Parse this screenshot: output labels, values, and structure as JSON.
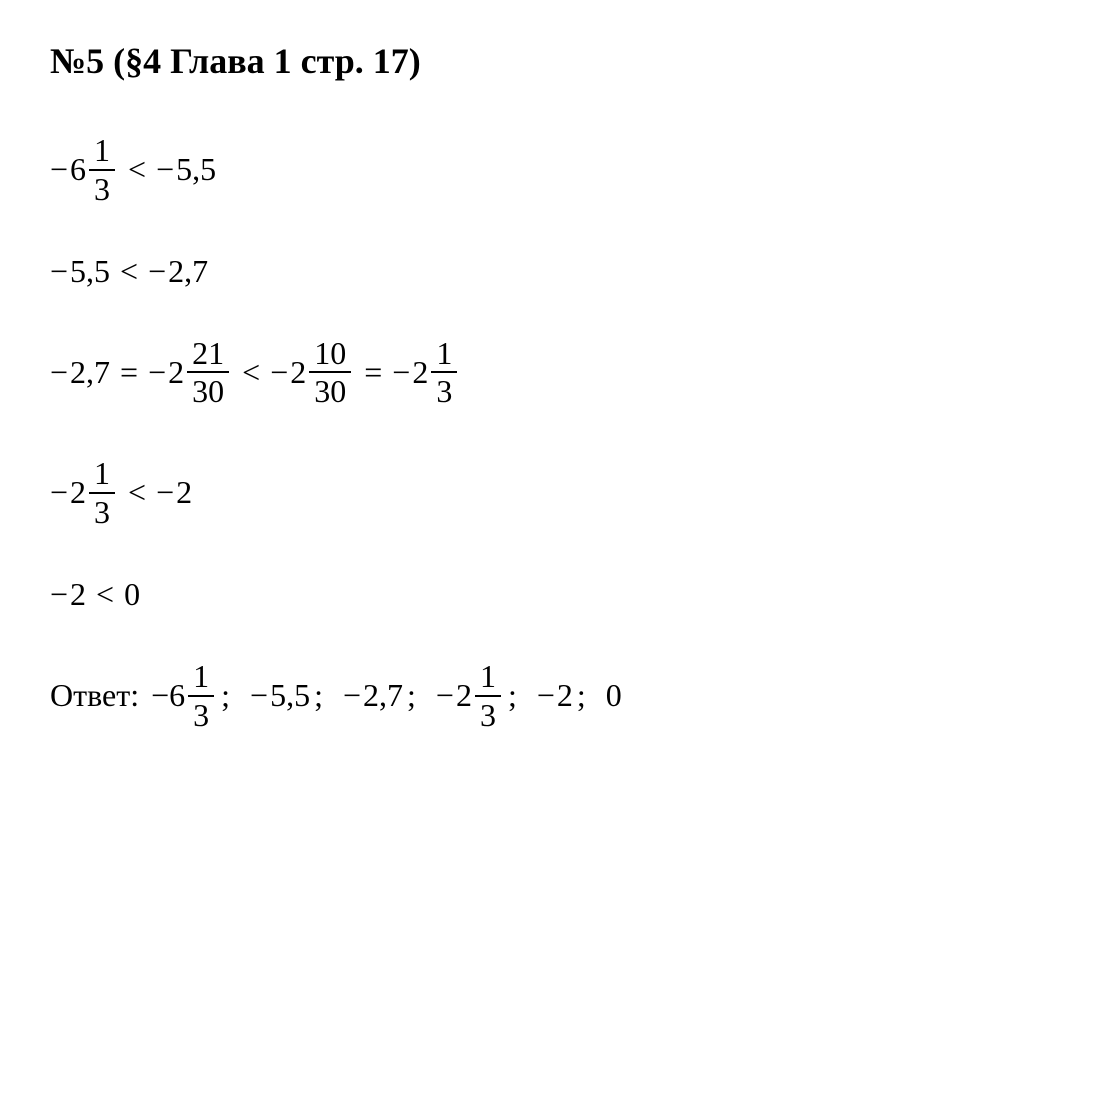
{
  "title": "№5 (§4 Глава 1  стр. 17)",
  "lines": {
    "l1": {
      "neg1": "−",
      "whole1": "6",
      "num1": "1",
      "den1": "3",
      "lt": "<",
      "neg2": "−",
      "val2": "5,5"
    },
    "l2": {
      "neg1": "−",
      "val1": "5,5",
      "lt": "<",
      "neg2": "−",
      "val2": "2,7"
    },
    "l3": {
      "neg1": "−",
      "val1": "2,7",
      "eq1": "=",
      "neg2": "−",
      "whole2": "2",
      "num2": "21",
      "den2": "30",
      "lt": "<",
      "neg3": "−",
      "whole3": "2",
      "num3": "10",
      "den3": "30",
      "eq2": "=",
      "neg4": "−",
      "whole4": "2",
      "num4": "1",
      "den4": "3"
    },
    "l4": {
      "neg1": "−",
      "whole1": "2",
      "num1": "1",
      "den1": "3",
      "lt": "<",
      "neg2": "−",
      "val2": "2"
    },
    "l5": {
      "neg1": "−",
      "val1": "2",
      "lt": "<",
      "val2": "0"
    },
    "answer": {
      "label": "Ответ:",
      "sp": " ",
      "neg1": "− ",
      "whole1": "6",
      "num1": "1",
      "den1": "3",
      "sc1": ";",
      "neg2": "−",
      "val2": "5,5",
      "sc2": ";",
      "neg3": "−",
      "val3": "2,7",
      "sc3": ";",
      "neg4": "−",
      "whole4": "2",
      "num4": "1",
      "den4": "3",
      "sc4": ";",
      "neg5": "−",
      "val5": "2",
      "sc5": ";",
      "val6": "0"
    }
  }
}
